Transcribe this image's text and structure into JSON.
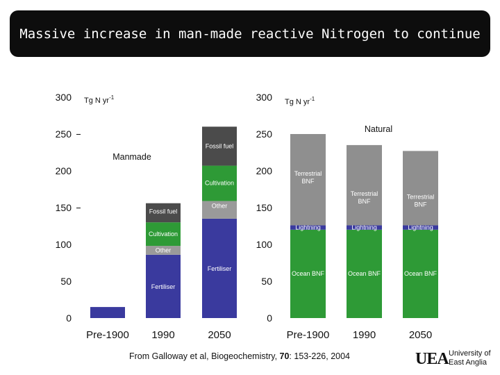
{
  "title": "Massive increase in man-made reactive Nitrogen to continue",
  "citation": {
    "prefix": "From Galloway et al, Biogeochemistry, ",
    "volume": "70",
    "suffix": ": 153-226, 2004"
  },
  "logo": {
    "mark": "UEA",
    "line1": "University of",
    "line2": "East Anglia"
  },
  "colors": {
    "fertiliser": "#3a3a9e",
    "cultivation": "#2e9a36",
    "other": "#9a9a9a",
    "fossil_fuel": "#4b4b4b",
    "ocean_bnf": "#2e9a36",
    "lightning": "#3a3a9e",
    "terrestrial_bnf": "#8f8f8f"
  },
  "chart_data": [
    {
      "type": "bar",
      "stacked": true,
      "panel_label": "Manmade",
      "unit_label": "Tg N yr",
      "unit_superscript": "-1",
      "categories": [
        "Pre-1900",
        "1990",
        "2050"
      ],
      "ylim": [
        0,
        300
      ],
      "yticks": [
        0,
        50,
        100,
        150,
        200,
        250,
        300
      ],
      "series": [
        {
          "name": "Fertiliser",
          "color_key": "fertiliser",
          "values": [
            15,
            86,
            135
          ]
        },
        {
          "name": "Other",
          "color_key": "other",
          "values": [
            0,
            12,
            24
          ]
        },
        {
          "name": "Cultivation",
          "color_key": "cultivation",
          "values": [
            0,
            32,
            48
          ]
        },
        {
          "name": "Fossil fuel",
          "color_key": "fossil_fuel",
          "values": [
            0,
            26,
            53
          ]
        }
      ],
      "segment_labels": [
        [],
        [
          "Fertiliser",
          "Other",
          "Cultivation",
          "Fossil fuel"
        ],
        [
          "Fertiliser",
          "Other",
          "Cultivation",
          "Fossil fuel"
        ]
      ]
    },
    {
      "type": "bar",
      "stacked": true,
      "panel_label": "Natural",
      "unit_label": "Tg N yr",
      "unit_superscript": "-1",
      "categories": [
        "Pre-1900",
        "1990",
        "2050"
      ],
      "ylim": [
        0,
        300
      ],
      "yticks": [
        0,
        50,
        100,
        150,
        200,
        250,
        300
      ],
      "series": [
        {
          "name": "Ocean BNF",
          "color_key": "ocean_bnf",
          "values": [
            120,
            120,
            120
          ]
        },
        {
          "name": "Lightning",
          "color_key": "lightning",
          "values": [
            6,
            6,
            6
          ]
        },
        {
          "name": "Terrestrial BNF",
          "color_key": "terrestrial_bnf",
          "values": [
            124,
            109,
            101
          ]
        }
      ],
      "segment_labels": [
        [
          "Ocean BNF",
          "Lightning",
          "Terrestrial BNF"
        ],
        [
          "Ocean BNF",
          "Lightning",
          "Terrestrial BNF"
        ],
        [
          "Ocean BNF",
          "Lightning",
          "Terrestrial BNF"
        ]
      ]
    }
  ]
}
